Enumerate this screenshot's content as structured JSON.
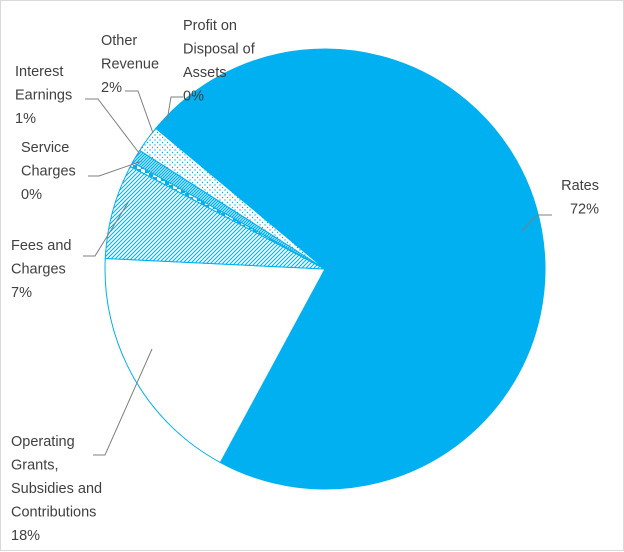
{
  "chart_data": {
    "type": "pie",
    "title": "",
    "legend": "none",
    "colors": {
      "primary": "#00b0f0",
      "outline": "#00b0f0",
      "white_fill": "#ffffff",
      "leader": "#7f7f7f",
      "text": "#404040"
    },
    "slices": [
      {
        "name": "Rates",
        "value": 72,
        "label_lines": [
          "Rates",
          "72%"
        ],
        "pattern": "solid"
      },
      {
        "name": "Operating Grants, Subsidies and Contributions",
        "value": 18,
        "label_lines": [
          "Operating",
          "Grants,",
          "Subsidies and",
          "Contributions",
          "18%"
        ],
        "pattern": "white"
      },
      {
        "name": "Fees and Charges",
        "value": 7,
        "label_lines": [
          "Fees and",
          "Charges",
          "7%"
        ],
        "pattern": "diagonal"
      },
      {
        "name": "Service Charges",
        "value": 0,
        "label_lines": [
          "Service",
          "Charges",
          "0%"
        ],
        "pattern": "checker"
      },
      {
        "name": "Interest Earnings",
        "value": 1,
        "label_lines": [
          "Interest",
          "Earnings",
          "1%"
        ],
        "pattern": "dark-diagonal"
      },
      {
        "name": "Other Revenue",
        "value": 2,
        "label_lines": [
          "Other",
          "Revenue",
          "2%"
        ],
        "pattern": "dots"
      },
      {
        "name": "Profit on Disposal of Assets",
        "value": 0,
        "label_lines": [
          "Profit on",
          "Disposal of",
          "Assets",
          "0%"
        ],
        "pattern": "solid"
      }
    ]
  }
}
